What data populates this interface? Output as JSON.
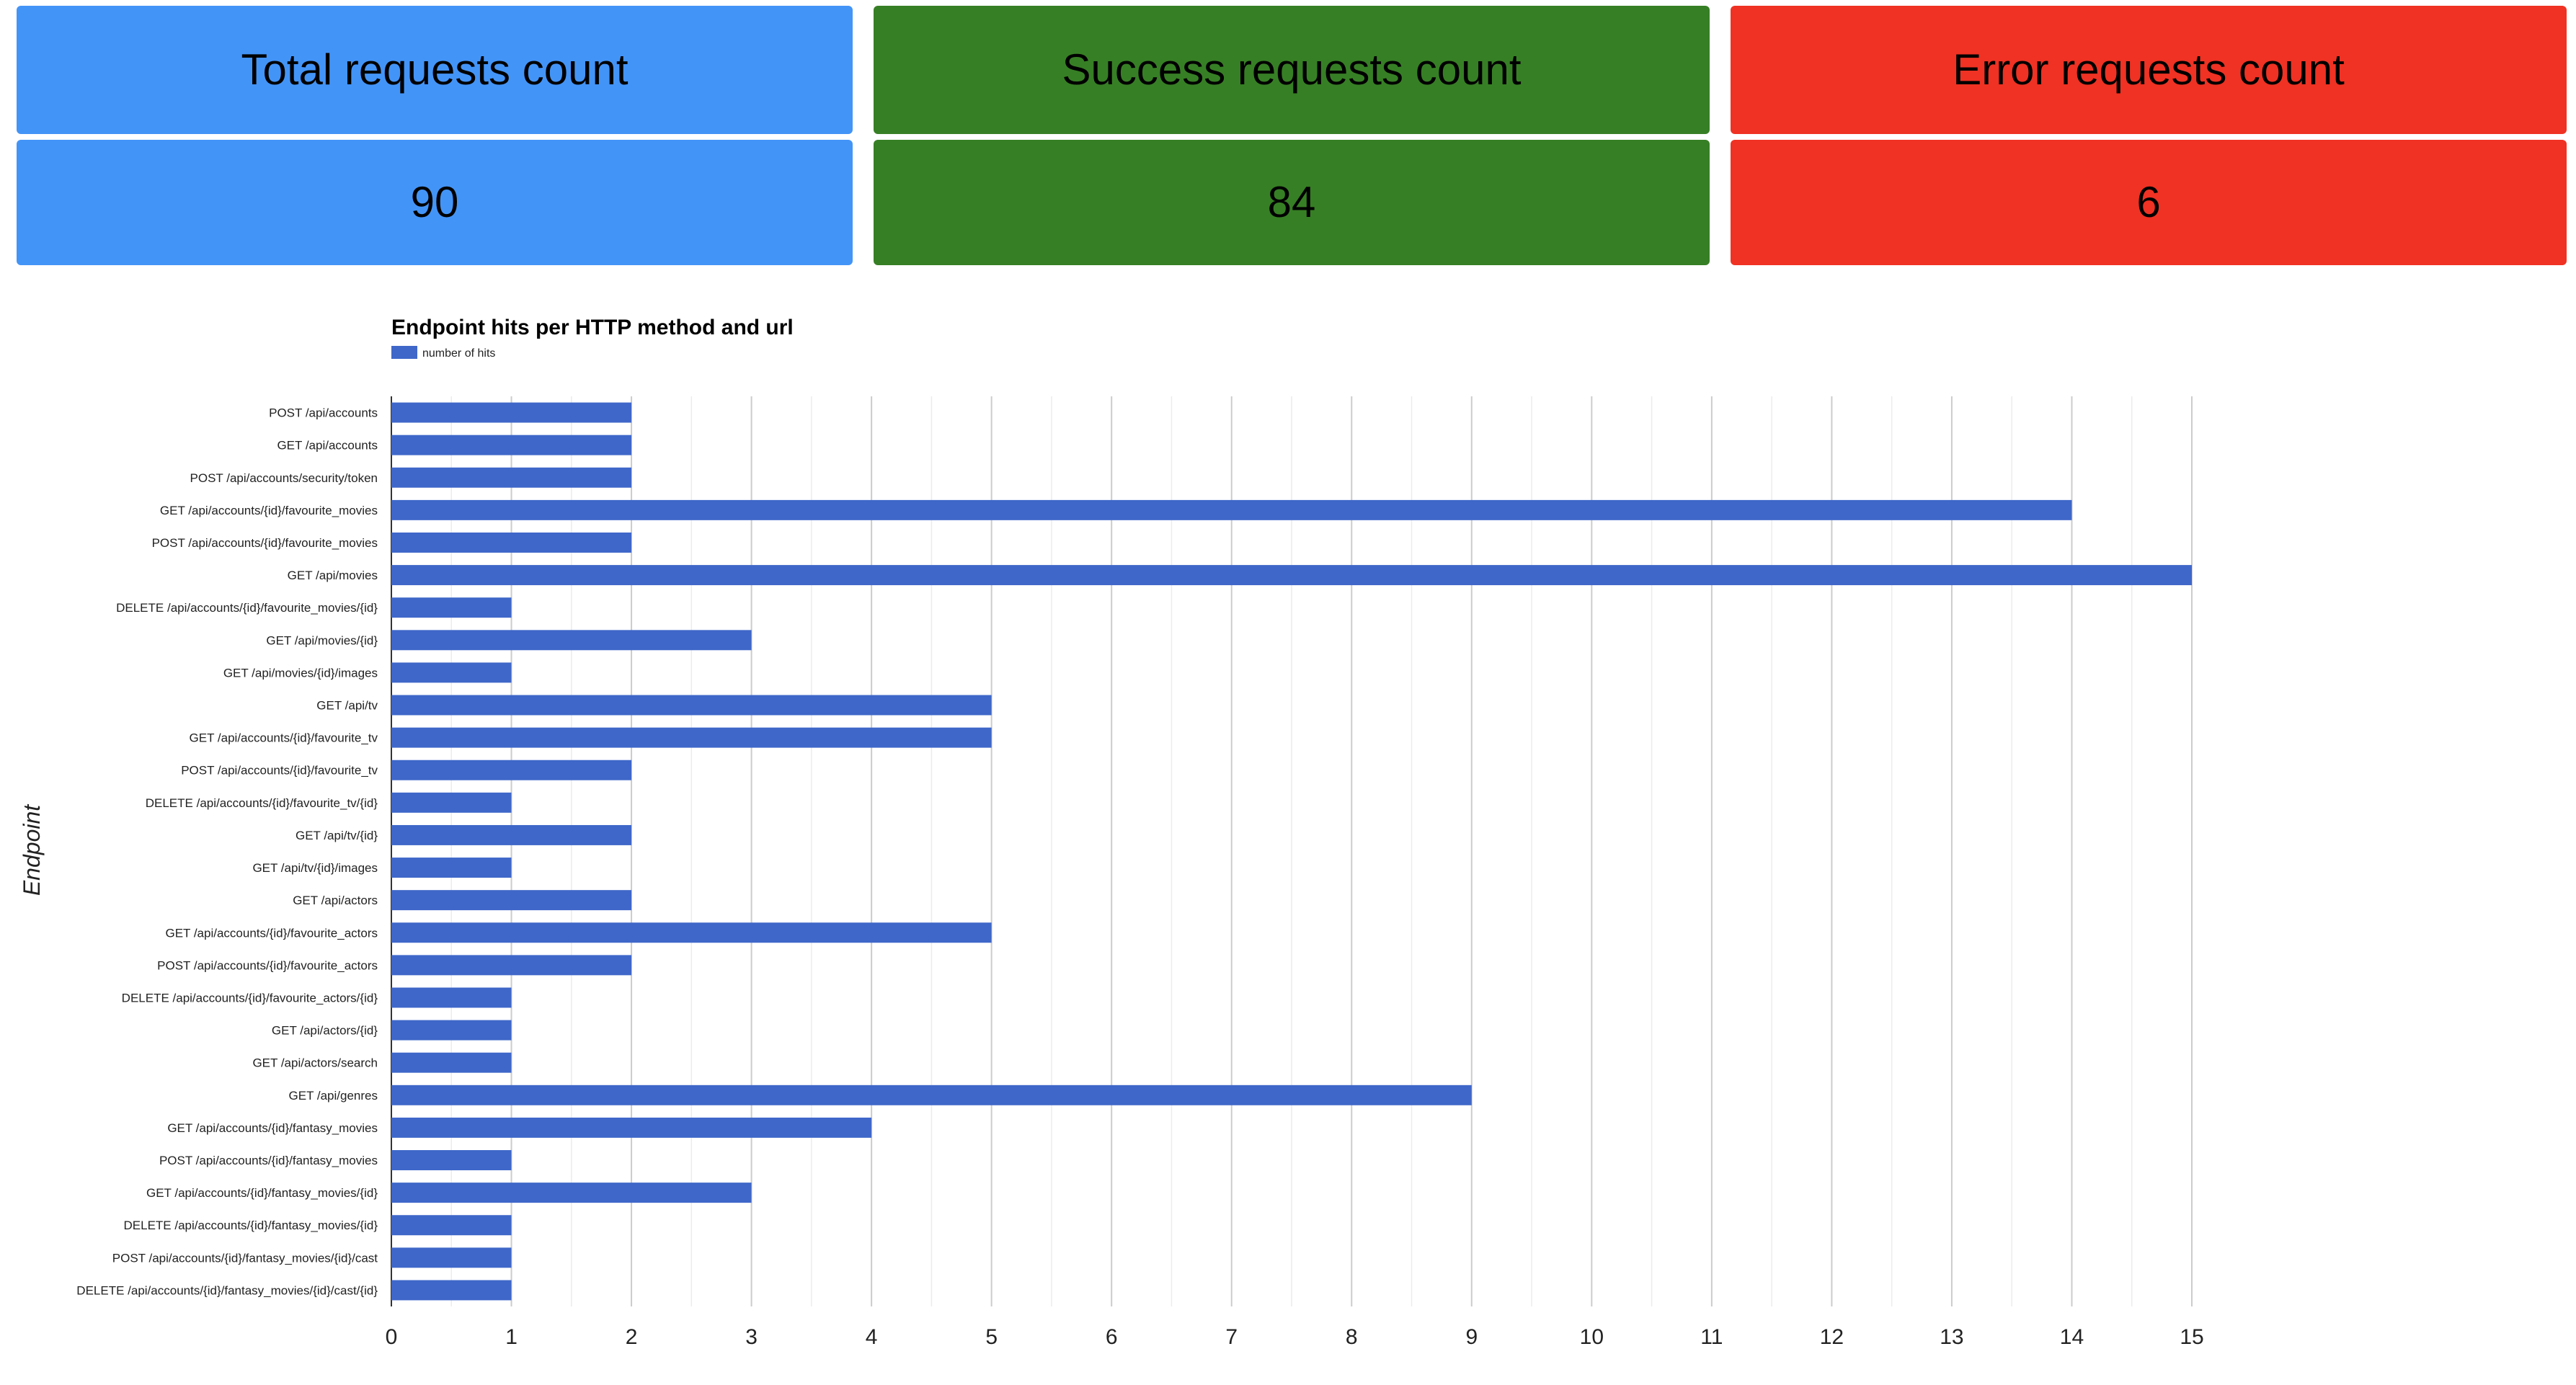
{
  "cards": {
    "total": {
      "label": "Total requests count",
      "value": "90",
      "color": "#4394F7"
    },
    "success": {
      "label": "Success requests count",
      "value": "84",
      "color": "#377F25"
    },
    "error": {
      "label": "Error requests count",
      "value": "6",
      "color": "#EF3223"
    }
  },
  "chart_data": {
    "type": "bar",
    "orientation": "horizontal",
    "title": "Endpoint hits per HTTP method and url",
    "xlabel": "",
    "ylabel": "Endpoint",
    "xlim": [
      0,
      15
    ],
    "grid": true,
    "legend": {
      "position": "top-left",
      "entries": [
        "number of hits"
      ]
    },
    "bar_color": "#3F67C9",
    "categories": [
      "POST /api/accounts",
      "GET /api/accounts",
      "POST /api/accounts/security/token",
      "GET /api/accounts/{id}/favourite_movies",
      "POST /api/accounts/{id}/favourite_movies",
      "GET /api/movies",
      "DELETE /api/accounts/{id}/favourite_movies/{id}",
      "GET /api/movies/{id}",
      "GET /api/movies/{id}/images",
      "GET /api/tv",
      "GET /api/accounts/{id}/favourite_tv",
      "POST /api/accounts/{id}/favourite_tv",
      "DELETE /api/accounts/{id}/favourite_tv/{id}",
      "GET /api/tv/{id}",
      "GET /api/tv/{id}/images",
      "GET /api/actors",
      "GET /api/accounts/{id}/favourite_actors",
      "POST /api/accounts/{id}/favourite_actors",
      "DELETE /api/accounts/{id}/favourite_actors/{id}",
      "GET /api/actors/{id}",
      "GET /api/actors/search",
      "GET /api/genres",
      "GET /api/accounts/{id}/fantasy_movies",
      "POST /api/accounts/{id}/fantasy_movies",
      "GET /api/accounts/{id}/fantasy_movies/{id}",
      "DELETE /api/accounts/{id}/fantasy_movies/{id}",
      "POST /api/accounts/{id}/fantasy_movies/{id}/cast",
      "DELETE /api/accounts/{id}/fantasy_movies/{id}/cast/{id}"
    ],
    "series": [
      {
        "name": "number of hits",
        "values": [
          2,
          2,
          2,
          14,
          2,
          15,
          1,
          3,
          1,
          5,
          5,
          2,
          1,
          2,
          1,
          2,
          5,
          2,
          1,
          1,
          1,
          9,
          4,
          1,
          3,
          1,
          1,
          1
        ]
      }
    ],
    "x_ticks": [
      "0",
      "1",
      "2",
      "3",
      "4",
      "5",
      "6",
      "7",
      "8",
      "9",
      "10",
      "11",
      "12",
      "13",
      "14",
      "15"
    ]
  }
}
